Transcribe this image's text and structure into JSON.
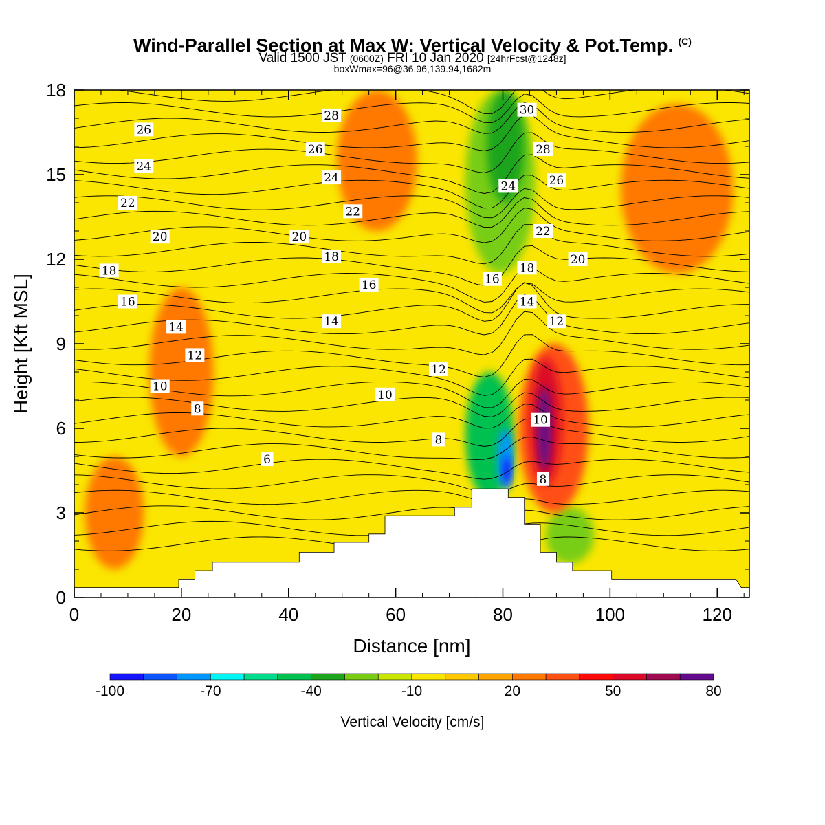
{
  "header": {
    "title": "Wind-Parallel Section at Max W: Vertical Velocity & Pot.Temp.",
    "title_mark": "(C)",
    "valid_prefix": "Valid 1500 JST",
    "valid_utc": "(0600Z)",
    "valid_date": "FRI 10 Jan 2020",
    "forecast": "[24hrFcst@1248z]",
    "boxwmax": "boxWmax=96@36.96,139.94,1682m"
  },
  "chart_data": {
    "type": "heatmap",
    "title": "Wind-Parallel Section at Max W: Vertical Velocity & Pot.Temp.",
    "xlabel": "Distance [nm]",
    "ylabel": "Height [Kft MSL]",
    "xlim": [
      0,
      126
    ],
    "ylim": [
      0,
      18
    ],
    "xticks": [
      0,
      20,
      40,
      60,
      80,
      100,
      120
    ],
    "yticks": [
      0,
      3,
      6,
      9,
      12,
      15,
      18
    ],
    "colorbar": {
      "title": "Vertical Velocity [cm/s]",
      "range": [
        -100,
        80
      ],
      "step": 10,
      "tick_labels": [
        "-100",
        "-70",
        "-40",
        "-10",
        "20",
        "50",
        "80"
      ],
      "colors": [
        "#1414ff",
        "#0a55ff",
        "#0096ff",
        "#00f5f5",
        "#00dc8c",
        "#00c050",
        "#1ea51e",
        "#78cd14",
        "#c8e600",
        "#fae600",
        "#ffc800",
        "#ffa500",
        "#ff7800",
        "#ff5014",
        "#ff0a0a",
        "#dc0a28",
        "#a00a50",
        "#640a8c"
      ]
    },
    "terrain": [
      [
        0,
        0.35
      ],
      [
        19.5,
        0.35
      ],
      [
        19.5,
        0.65
      ],
      [
        22.5,
        0.65
      ],
      [
        22.5,
        0.95
      ],
      [
        25.8,
        0.95
      ],
      [
        25.8,
        1.25
      ],
      [
        42,
        1.25
      ],
      [
        42,
        1.6
      ],
      [
        48.5,
        1.6
      ],
      [
        48.5,
        1.95
      ],
      [
        55,
        1.95
      ],
      [
        55,
        2.25
      ],
      [
        58,
        2.25
      ],
      [
        58,
        2.9
      ],
      [
        71,
        2.9
      ],
      [
        71,
        3.2
      ],
      [
        74.2,
        3.2
      ],
      [
        74.2,
        3.85
      ],
      [
        81,
        3.85
      ],
      [
        81,
        3.55
      ],
      [
        84,
        3.55
      ],
      [
        84,
        2.6
      ],
      [
        87,
        2.6
      ],
      [
        87,
        1.6
      ],
      [
        90,
        1.6
      ],
      [
        90,
        1.25
      ],
      [
        93,
        1.25
      ],
      [
        93,
        0.95
      ],
      [
        100.3,
        0.95
      ],
      [
        100.3,
        0.65
      ],
      [
        123.5,
        0.65
      ],
      [
        124.5,
        0.35
      ],
      [
        126,
        0.35
      ]
    ],
    "velocity_cells": [
      {
        "x": [
          2,
          13
        ],
        "y": [
          1,
          5
        ],
        "value": 25
      },
      {
        "x": [
          14,
          26
        ],
        "y": [
          5,
          11
        ],
        "value": 23
      },
      {
        "x": [
          49,
          64
        ],
        "y": [
          13,
          18
        ],
        "value": 22
      },
      {
        "x": [
          102,
          123
        ],
        "y": [
          11.5,
          17.5
        ],
        "value": 22
      },
      {
        "x": [
          57,
          71
        ],
        "y": [
          3,
          9
        ],
        "value": -5
      },
      {
        "x": [
          73,
          86
        ],
        "y": [
          11.5,
          18
        ],
        "value": -25
      },
      {
        "x": [
          77,
          84
        ],
        "y": [
          14,
          18
        ],
        "value": -40
      },
      {
        "x": [
          104,
          126
        ],
        "y": [
          2,
          8.5
        ],
        "value": -8
      },
      {
        "x": [
          88,
          97
        ],
        "y": [
          1.2,
          3.2
        ],
        "value": -30
      },
      {
        "x": [
          73,
          82
        ],
        "y": [
          3.5,
          8
        ],
        "value": -45
      },
      {
        "x": [
          79,
          82
        ],
        "y": [
          3.8,
          6
        ],
        "value": -80
      },
      {
        "x": [
          80,
          81.5
        ],
        "y": [
          4,
          5
        ],
        "value": -95
      },
      {
        "x": [
          83,
          96
        ],
        "y": [
          3,
          9
        ],
        "value": 35
      },
      {
        "x": [
          85,
          91
        ],
        "y": [
          4,
          8.5
        ],
        "value": 55
      },
      {
        "x": [
          86.5,
          89
        ],
        "y": [
          4.5,
          7.5
        ],
        "value": 75
      }
    ],
    "theta_levels": [
      6,
      8,
      10,
      12,
      14,
      16,
      18,
      20,
      22,
      24,
      26,
      28,
      30
    ],
    "contour_labels": [
      {
        "text": "26",
        "x": 13,
        "y": 16.6
      },
      {
        "text": "28",
        "x": 48,
        "y": 17.1
      },
      {
        "text": "26",
        "x": 45,
        "y": 15.9
      },
      {
        "text": "30",
        "x": 84.5,
        "y": 17.3
      },
      {
        "text": "28",
        "x": 87.5,
        "y": 15.9
      },
      {
        "text": "24",
        "x": 13,
        "y": 15.3
      },
      {
        "text": "24",
        "x": 48,
        "y": 14.9
      },
      {
        "text": "24",
        "x": 81,
        "y": 14.6
      },
      {
        "text": "26",
        "x": 90,
        "y": 14.8
      },
      {
        "text": "22",
        "x": 10,
        "y": 14.0
      },
      {
        "text": "22",
        "x": 52,
        "y": 13.7
      },
      {
        "text": "22",
        "x": 87.5,
        "y": 13.0
      },
      {
        "text": "20",
        "x": 16,
        "y": 12.8
      },
      {
        "text": "20",
        "x": 42,
        "y": 12.8
      },
      {
        "text": "20",
        "x": 94,
        "y": 12.0
      },
      {
        "text": "18",
        "x": 6.5,
        "y": 11.6
      },
      {
        "text": "18",
        "x": 48,
        "y": 12.1
      },
      {
        "text": "18",
        "x": 84.5,
        "y": 11.7
      },
      {
        "text": "16",
        "x": 10,
        "y": 10.5
      },
      {
        "text": "16",
        "x": 55,
        "y": 11.1
      },
      {
        "text": "16",
        "x": 78,
        "y": 11.3
      },
      {
        "text": "14",
        "x": 19,
        "y": 9.6
      },
      {
        "text": "14",
        "x": 48,
        "y": 9.8
      },
      {
        "text": "14",
        "x": 84.5,
        "y": 10.5
      },
      {
        "text": "12",
        "x": 22.5,
        "y": 8.6
      },
      {
        "text": "12",
        "x": 68,
        "y": 8.1
      },
      {
        "text": "12",
        "x": 90,
        "y": 9.8
      },
      {
        "text": "10",
        "x": 16,
        "y": 7.5
      },
      {
        "text": "10",
        "x": 58,
        "y": 7.2
      },
      {
        "text": "10",
        "x": 87,
        "y": 6.3
      },
      {
        "text": "8",
        "x": 23,
        "y": 6.7
      },
      {
        "text": "8",
        "x": 68,
        "y": 5.6
      },
      {
        "text": "8",
        "x": 87.5,
        "y": 4.2
      },
      {
        "text": "6",
        "x": 36,
        "y": 4.9
      }
    ]
  }
}
